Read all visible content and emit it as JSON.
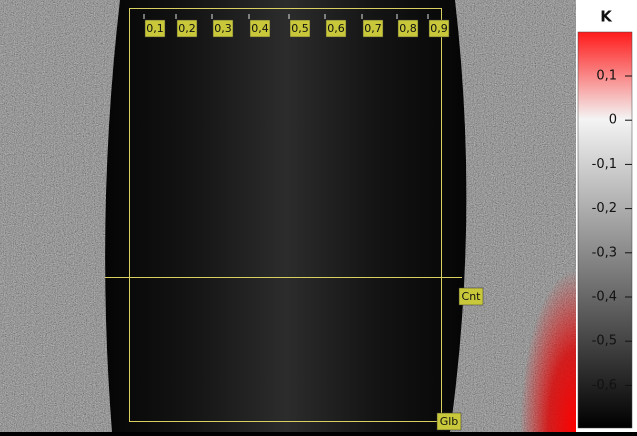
{
  "markers": {
    "top": [
      "0,1",
      "0,2",
      "0,3",
      "0,4",
      "0,5",
      "0,6",
      "0,7",
      "0,8",
      "0,9"
    ],
    "center": "Cnt",
    "global": "Glb"
  },
  "colorbar": {
    "title": "K",
    "ticks": [
      "0,1",
      "0",
      "-0,1",
      "-0,2",
      "-0,3",
      "-0,4",
      "-0,5",
      "-0,6"
    ]
  }
}
